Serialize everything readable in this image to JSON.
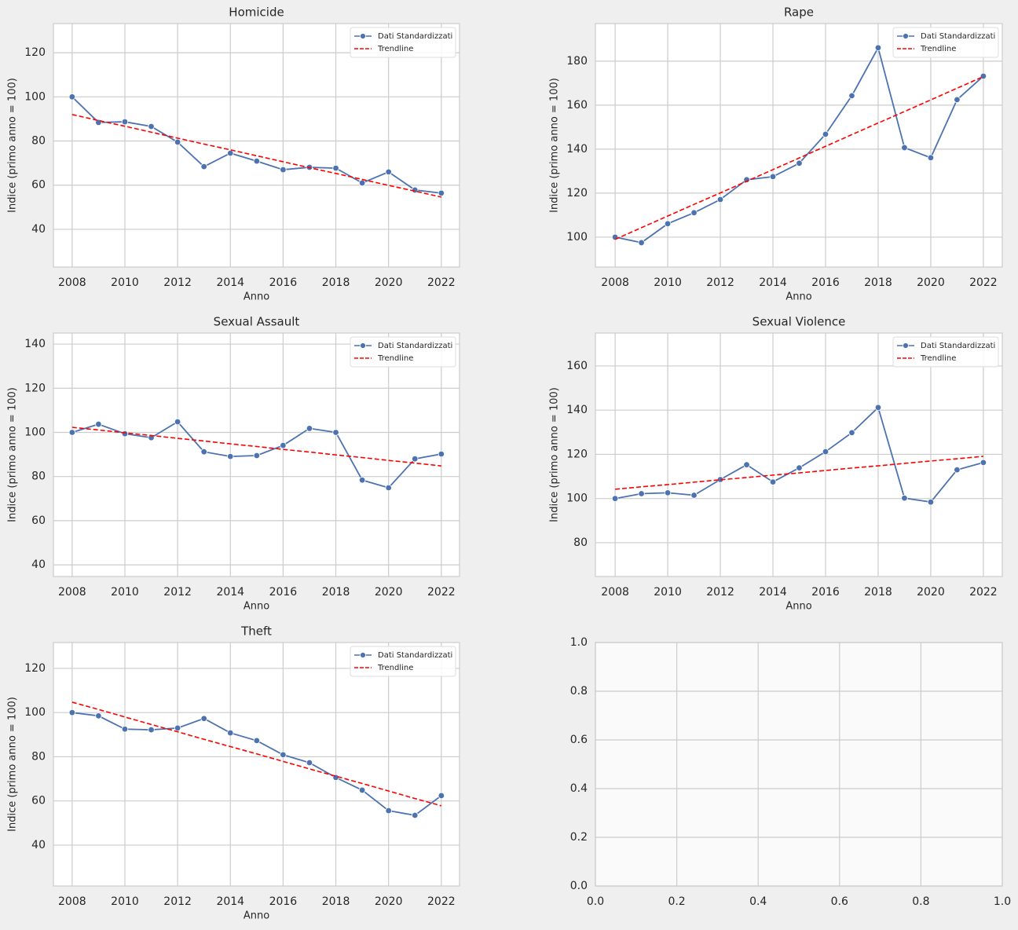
{
  "chart_data": [
    {
      "type": "line",
      "title": "Homicide",
      "xlabel": "Anno",
      "ylabel": "Indice (primo anno = 100)",
      "x": [
        2008,
        2009,
        2010,
        2011,
        2012,
        2013,
        2014,
        2015,
        2016,
        2017,
        2018,
        2019,
        2020,
        2021,
        2022
      ],
      "series": [
        {
          "name": "Dati Standardizzati",
          "color": "#4c72b0",
          "marker": "o",
          "linestyle": "solid",
          "values": [
            100,
            88.4,
            88.7,
            86.6,
            79.5,
            68.4,
            74.5,
            70.9,
            67.0,
            68.1,
            67.7,
            61.0,
            66.0,
            57.8,
            56.4
          ]
        },
        {
          "name": "Trendline",
          "color": "#ff0000",
          "linestyle": "dashed",
          "values": [
            92.0,
            89.3,
            86.7,
            84.0,
            81.3,
            78.6,
            76.0,
            73.3,
            70.6,
            67.9,
            65.3,
            62.6,
            59.9,
            57.3,
            54.6
          ]
        }
      ],
      "xlim": [
        2007.29,
        2022.69
      ],
      "xticks": [
        2008,
        2010,
        2012,
        2014,
        2016,
        2018,
        2020,
        2022
      ],
      "ylim": [
        22.9,
        133.2
      ],
      "yticks": [
        40,
        60,
        80,
        100,
        120
      ],
      "grid": true,
      "legend": "upper right"
    },
    {
      "type": "line",
      "title": "Rape",
      "xlabel": "Anno",
      "ylabel": "Indice (primo anno = 100)",
      "x": [
        2008,
        2009,
        2010,
        2011,
        2012,
        2013,
        2014,
        2015,
        2016,
        2017,
        2018,
        2019,
        2020,
        2021,
        2022
      ],
      "series": [
        {
          "name": "Dati Standardizzati",
          "color": "#4c72b0",
          "marker": "o",
          "linestyle": "solid",
          "values": [
            100,
            97.5,
            106.1,
            111.1,
            117.1,
            126.1,
            127.5,
            133.6,
            146.8,
            164.3,
            186.1,
            140.7,
            136.1,
            162.5,
            173.2
          ]
        },
        {
          "name": "Trendline",
          "color": "#ff0000",
          "linestyle": "dashed",
          "values": [
            99.0,
            104.3,
            109.6,
            114.9,
            120.1,
            125.4,
            130.7,
            136.0,
            141.3,
            146.6,
            151.9,
            157.1,
            162.4,
            167.7,
            173.0
          ]
        }
      ],
      "xlim": [
        2007.25,
        2022.72
      ],
      "xticks": [
        2008,
        2010,
        2012,
        2014,
        2016,
        2018,
        2020,
        2022
      ],
      "ylim": [
        86.4,
        197.1
      ],
      "yticks": [
        100,
        120,
        140,
        160,
        180
      ],
      "grid": true,
      "legend": "upper right"
    },
    {
      "type": "line",
      "title": "Sexual Assault",
      "xlabel": "Anno",
      "ylabel": "Indice (primo anno = 100)",
      "x": [
        2008,
        2009,
        2010,
        2011,
        2012,
        2013,
        2014,
        2015,
        2016,
        2017,
        2018,
        2019,
        2020,
        2021,
        2022
      ],
      "series": [
        {
          "name": "Dati Standardizzati",
          "color": "#4c72b0",
          "marker": "o",
          "linestyle": "solid",
          "values": [
            100,
            103.7,
            99.4,
            97.6,
            104.8,
            91.2,
            89.1,
            89.5,
            94.1,
            101.8,
            100,
            78.4,
            74.9,
            88.0,
            90.2
          ]
        },
        {
          "name": "Trendline",
          "color": "#ff0000",
          "linestyle": "dashed",
          "values": [
            102.3,
            101.1,
            99.8,
            98.6,
            97.3,
            96.1,
            94.8,
            93.6,
            92.3,
            91.1,
            89.8,
            88.6,
            87.3,
            86.1,
            84.8
          ]
        }
      ],
      "xlim": [
        2007.29,
        2022.69
      ],
      "xticks": [
        2008,
        2010,
        2012,
        2014,
        2016,
        2018,
        2020,
        2022
      ],
      "ylim": [
        34.7,
        145.0
      ],
      "yticks": [
        40,
        60,
        80,
        100,
        120,
        140
      ],
      "grid": true,
      "legend": "upper right"
    },
    {
      "type": "line",
      "title": "Sexual Violence",
      "xlabel": "Anno",
      "ylabel": "Indice (primo anno = 100)",
      "x": [
        2008,
        2009,
        2010,
        2011,
        2012,
        2013,
        2014,
        2015,
        2016,
        2017,
        2018,
        2019,
        2020,
        2021,
        2022
      ],
      "series": [
        {
          "name": "Dati Standardizzati",
          "color": "#4c72b0",
          "marker": "o",
          "linestyle": "solid",
          "values": [
            100,
            102.2,
            102.6,
            101.5,
            108.6,
            115.3,
            107.5,
            113.9,
            121.2,
            129.8,
            141.2,
            100.2,
            98.4,
            113.0,
            116.3
          ]
        },
        {
          "name": "Trendline",
          "color": "#ff0000",
          "linestyle": "dashed",
          "values": [
            104.2,
            105.3,
            106.3,
            107.4,
            108.5,
            109.5,
            110.6,
            111.6,
            112.7,
            113.8,
            114.8,
            115.9,
            117.0,
            118.0,
            119.1
          ]
        }
      ],
      "xlim": [
        2007.25,
        2022.72
      ],
      "xticks": [
        2008,
        2010,
        2012,
        2014,
        2016,
        2018,
        2020,
        2022
      ],
      "ylim": [
        64.7,
        174.9
      ],
      "yticks": [
        80,
        100,
        120,
        140,
        160
      ],
      "grid": true,
      "legend": "upper right"
    },
    {
      "type": "line",
      "title": "Theft",
      "xlabel": "Anno",
      "ylabel": "Indice (primo anno = 100)",
      "x": [
        2008,
        2009,
        2010,
        2011,
        2012,
        2013,
        2014,
        2015,
        2016,
        2017,
        2018,
        2019,
        2020,
        2021,
        2022
      ],
      "series": [
        {
          "name": "Dati Standardizzati",
          "color": "#4c72b0",
          "marker": "o",
          "linestyle": "solid",
          "values": [
            100,
            98.5,
            92.5,
            92.2,
            93.0,
            97.3,
            90.8,
            87.3,
            80.9,
            77.3,
            70.6,
            64.9,
            55.6,
            53.5,
            62.4
          ]
        },
        {
          "name": "Trendline",
          "color": "#ff0000",
          "linestyle": "dashed",
          "values": [
            104.7,
            101.4,
            98.0,
            94.6,
            91.3,
            87.9,
            84.6,
            81.3,
            77.9,
            74.5,
            71.2,
            67.9,
            64.5,
            61.1,
            57.8
          ]
        }
      ],
      "xlim": [
        2007.29,
        2022.69
      ],
      "xticks": [
        2008,
        2010,
        2012,
        2014,
        2016,
        2018,
        2020,
        2022
      ],
      "ylim": [
        21.5,
        131.7
      ],
      "yticks": [
        40,
        60,
        80,
        100,
        120
      ],
      "grid": true,
      "legend": "upper right"
    },
    {
      "type": "line",
      "background": "#fafafa",
      "xlim": [
        0,
        1
      ],
      "xticks": [
        {
          "value": 0,
          "label": "0.0"
        },
        {
          "value": 0.2,
          "label": "0.2"
        },
        {
          "value": 0.4,
          "label": "0.4"
        },
        {
          "value": 0.6,
          "label": "0.6"
        },
        {
          "value": 0.8,
          "label": "0.8"
        },
        {
          "value": 1,
          "label": "1.0"
        }
      ],
      "ylim": [
        0,
        1
      ],
      "yticks": [
        {
          "value": 0,
          "label": "0.0"
        },
        {
          "value": 0.2,
          "label": "0.2"
        },
        {
          "value": 0.4,
          "label": "0.4"
        },
        {
          "value": 0.6,
          "label": "0.6"
        },
        {
          "value": 0.8,
          "label": "0.8"
        },
        {
          "value": 1,
          "label": "1.0"
        }
      ],
      "grid": true
    }
  ]
}
